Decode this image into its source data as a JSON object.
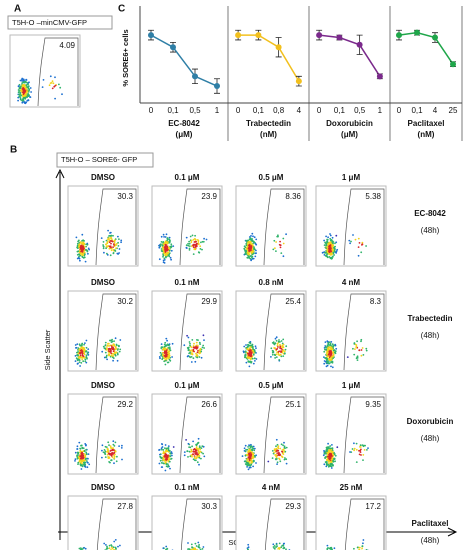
{
  "panel_a": {
    "label": "A",
    "sample": "T5H-O –minCMV-GFP",
    "gate_value": "4.09"
  },
  "panel_b": {
    "label": "B",
    "sample": "T5H-O – SORE6- GFP",
    "y_axis": "Side Scatter",
    "x_axis": "SORE6-GFP",
    "rows": [
      {
        "drug": "EC-8042",
        "time": "(48h)",
        "doses": [
          "DMSO",
          "0.1 μM",
          "0.5 μM",
          "1 μM"
        ],
        "gates": [
          "30.3",
          "23.9",
          "8.36",
          "5.38"
        ]
      },
      {
        "drug": "Trabectedin",
        "time": "(48h)",
        "doses": [
          "DMSO",
          "0.1 nM",
          "0.8 nM",
          "4 nM"
        ],
        "gates": [
          "30.2",
          "29.9",
          "25.4",
          "8.3"
        ]
      },
      {
        "drug": "Doxorubicin",
        "time": "(48h)",
        "doses": [
          "DMSO",
          "0.1 μM",
          "0.5 μM",
          "1 μM"
        ],
        "gates": [
          "29.2",
          "26.6",
          "25.1",
          "9.35"
        ]
      },
      {
        "drug": "Paclitaxel",
        "time": "(48h)",
        "doses": [
          "DMSO",
          "0.1 nM",
          "4 nM",
          "25 nM"
        ],
        "gates": [
          "27.8",
          "30.3",
          "29.3",
          "17.2"
        ]
      }
    ]
  },
  "chart_data": {
    "type": "line",
    "label": "C",
    "ylabel": "% SORE6+ cells",
    "ylim": [
      0,
      40
    ],
    "panels": [
      {
        "name": "EC-8042",
        "unit": "(μM)",
        "color": "#2f7fa6",
        "categories": [
          "0",
          "0,1",
          "0,5",
          "1"
        ],
        "values": [
          28,
          23,
          11,
          7
        ],
        "errors": [
          2,
          2,
          3,
          3
        ]
      },
      {
        "name": "Trabectedin",
        "unit": "(nM)",
        "color": "#f2c01e",
        "categories": [
          "0",
          "0,1",
          "0,8",
          "4"
        ],
        "values": [
          28,
          28,
          23,
          9
        ],
        "errors": [
          2,
          2,
          4,
          2
        ]
      },
      {
        "name": "Doxorubicin",
        "unit": "(μM)",
        "color": "#7b2a8c",
        "categories": [
          "0",
          "0,1",
          "0,5",
          "1"
        ],
        "values": [
          28,
          27,
          24,
          11
        ],
        "errors": [
          2,
          1,
          4,
          1
        ]
      },
      {
        "name": "Paclitaxel",
        "unit": "(nM)",
        "color": "#1fa64a",
        "categories": [
          "0",
          "0,1",
          "4",
          "25"
        ],
        "values": [
          28,
          29,
          27,
          16
        ],
        "errors": [
          2,
          1,
          2,
          1
        ]
      }
    ]
  }
}
